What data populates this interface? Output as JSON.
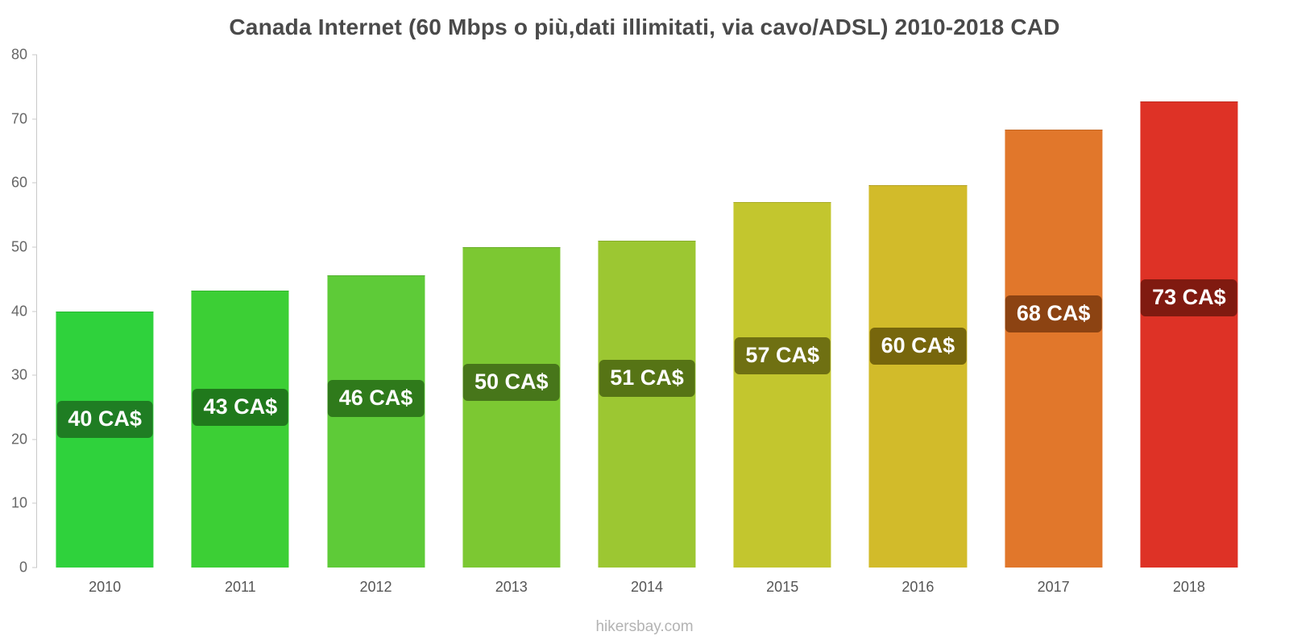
{
  "chart_data": {
    "type": "bar",
    "title": "Canada Internet (60 Mbps o più,dati illimitati, via cavo/ADSL) 2010-2018 CAD",
    "categories": [
      "2010",
      "2011",
      "2012",
      "2013",
      "2014",
      "2015",
      "2016",
      "2017",
      "2018"
    ],
    "values": [
      40,
      43.2,
      45.6,
      50,
      51,
      57,
      59.7,
      68.3,
      72.7
    ],
    "labels": [
      "40 CA$",
      "43 CA$",
      "46 CA$",
      "50 CA$",
      "51 CA$",
      "57 CA$",
      "60 CA$",
      "68 CA$",
      "73 CA$"
    ],
    "bar_colors": [
      "#2fd23c",
      "#3ccf35",
      "#5ecb38",
      "#7cc832",
      "#9cc732",
      "#c3c62e",
      "#d2bb2a",
      "#e1772b",
      "#de3226"
    ],
    "label_bg_colors": [
      "#1f7d23",
      "#20791c",
      "#2f7a1b",
      "#47761a",
      "#567415",
      "#6f7012",
      "#77660c",
      "#8c4312",
      "#801a10"
    ],
    "xlabel": "",
    "ylabel": "",
    "ylim": [
      0,
      80
    ],
    "yticks": [
      0,
      10,
      20,
      30,
      40,
      50,
      60,
      70,
      80
    ],
    "grid": false,
    "legend": false
  },
  "footer": {
    "watermark": "hikersbay.com"
  }
}
